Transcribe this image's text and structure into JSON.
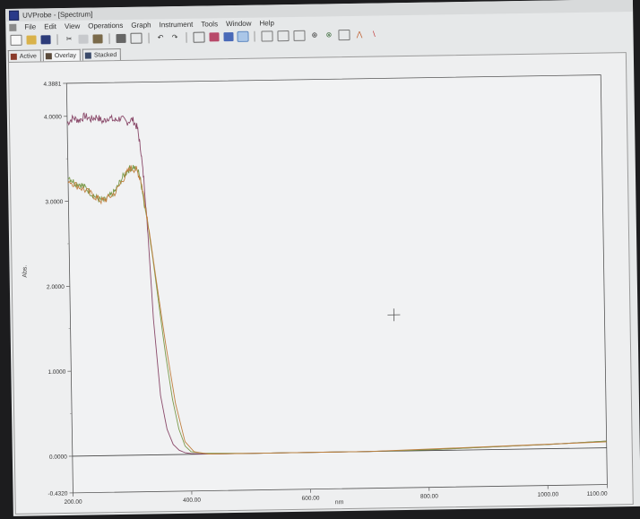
{
  "window": {
    "title": "UVProbe - [Spectrum]"
  },
  "menu": {
    "items": [
      "File",
      "Edit",
      "View",
      "Operations",
      "Graph",
      "Instrument",
      "Tools",
      "Window",
      "Help"
    ]
  },
  "toolbar": {
    "icons": [
      "new-icon",
      "open-icon",
      "save-icon",
      "cut-icon",
      "copy-icon",
      "paste-icon",
      "print-icon",
      "print-preview-icon",
      "undo-icon",
      "redo-icon",
      "zoom-icon",
      "pan-icon",
      "cursor-icon",
      "peak-pick-icon",
      "point-pick-icon",
      "data-print-icon",
      "connect-icon",
      "properties-icon",
      "manipulate-icon",
      "peak-icon",
      "valley-icon",
      "derivative-icon"
    ]
  },
  "tabs": [
    {
      "label": "Active"
    },
    {
      "label": "Overlay"
    },
    {
      "label": "Stacked"
    }
  ],
  "chart_data": {
    "type": "line",
    "xlabel": "nm",
    "ylabel": "Abs.",
    "xlim": [
      200.0,
      1100.0
    ],
    "ylim": [
      -0.432,
      4.3881
    ],
    "y_ticks": [
      "4.3881",
      "4.0000",
      "3.0000",
      "2.0000",
      "1.0000",
      "0.0000",
      "-0.4320"
    ],
    "x_ticks": [
      "200.00",
      "400.00",
      "600.00",
      "800.00",
      "1000.00",
      "1100.00"
    ],
    "y_tick_values": [
      4.3881,
      4.0,
      3.0,
      2.0,
      1.0,
      0.0,
      -0.432
    ],
    "x_tick_values": [
      200,
      400,
      600,
      800,
      1000,
      1100
    ],
    "series": [
      {
        "color": "#8a4a6a",
        "x": [
          200,
          210,
          220,
          230,
          240,
          250,
          260,
          270,
          280,
          290,
          300,
          310,
          318,
          323,
          328,
          333,
          340,
          350,
          360,
          370,
          380,
          390,
          400,
          420,
          500,
          600,
          700,
          800,
          900,
          1000,
          1100
        ],
        "y": [
          3.92,
          3.98,
          3.95,
          4.0,
          3.96,
          3.99,
          3.93,
          3.98,
          3.94,
          3.97,
          3.92,
          3.95,
          3.85,
          3.6,
          3.2,
          2.6,
          1.6,
          0.7,
          0.3,
          0.12,
          0.05,
          0.02,
          0.01,
          0.0,
          0.0,
          0.0,
          0.0,
          0.01,
          0.03,
          0.05,
          0.08
        ]
      },
      {
        "color": "#7a9a4a",
        "x": [
          200,
          210,
          220,
          230,
          240,
          250,
          260,
          270,
          280,
          290,
          300,
          310,
          320,
          325,
          330,
          340,
          350,
          360,
          370,
          380,
          390,
          400,
          420,
          500,
          600,
          700,
          800,
          900,
          1000,
          1100
        ],
        "y": [
          3.3,
          3.22,
          3.2,
          3.15,
          3.08,
          3.02,
          3.0,
          3.05,
          3.12,
          3.25,
          3.35,
          3.4,
          3.32,
          3.1,
          2.85,
          2.35,
          1.75,
          1.15,
          0.65,
          0.3,
          0.1,
          0.03,
          0.01,
          0.0,
          0.0,
          0.0,
          0.01,
          0.03,
          0.05,
          0.08
        ]
      },
      {
        "color": "#c08040",
        "x": [
          200,
          215,
          230,
          245,
          255,
          265,
          280,
          295,
          305,
          315,
          322,
          328,
          335,
          345,
          360,
          375,
          390,
          405,
          430,
          500,
          700,
          1100
        ],
        "y": [
          3.25,
          3.18,
          3.12,
          3.05,
          3.0,
          3.02,
          3.1,
          3.28,
          3.38,
          3.36,
          3.25,
          3.0,
          2.65,
          2.1,
          1.3,
          0.6,
          0.15,
          0.03,
          0.0,
          0.0,
          0.0,
          0.07
        ]
      }
    ]
  }
}
